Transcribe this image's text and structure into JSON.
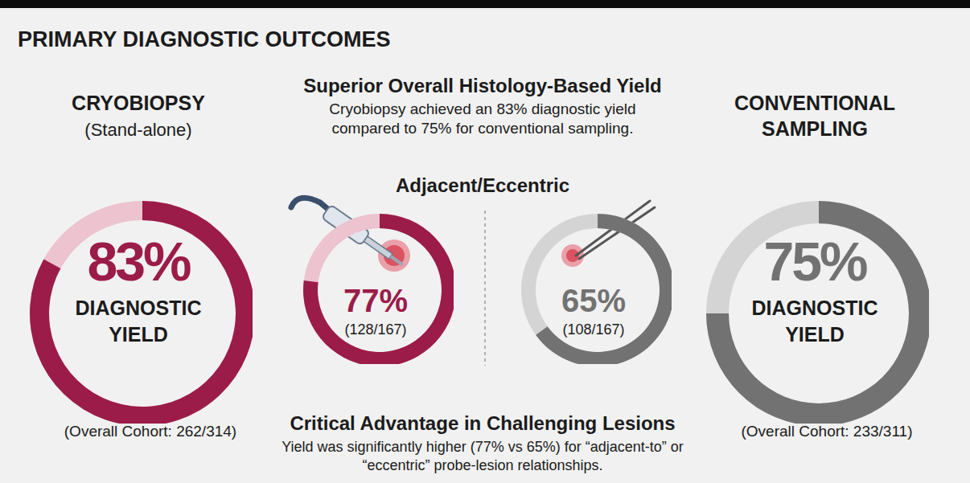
{
  "title": "PRIMARY DIAGNOSTIC OUTCOMES",
  "summary": {
    "title": "Superior Overall Histology-Based Yield",
    "text": "Cryobiopsy achieved an 83% diagnostic yield compared to 75% for conventional sampling."
  },
  "subgroup_title": "Adjacent/Eccentric",
  "conclusion": {
    "title": "Critical Advantage in Challenging Lesions",
    "text": "Yield was significantly higher (77% vs 65%) for “adjacent-to” or “eccentric” probe-lesion relationships."
  },
  "chart_data": [
    {
      "type": "donut",
      "title": "CRYOBIOPSY",
      "subtitle": "(Stand-alone)",
      "values": [
        83
      ],
      "value_labels": [
        "83%"
      ],
      "label": "DIAGNOSTIC YIELD",
      "note": "(Overall Cohort: 262/314)",
      "colors": [
        "#9b1c48",
        "#ecc3cf"
      ]
    },
    {
      "type": "donut",
      "values": [
        77
      ],
      "value_labels": [
        "77%"
      ],
      "note": "(128/167)",
      "colors": [
        "#9b1c48",
        "#ecc3cf"
      ]
    },
    {
      "type": "donut",
      "values": [
        65
      ],
      "value_labels": [
        "65%"
      ],
      "note": "(108/167)",
      "colors": [
        "#727272",
        "#d4d4d4"
      ]
    },
    {
      "type": "donut",
      "title": "CONVENTIONAL SAMPLING",
      "values": [
        75
      ],
      "value_labels": [
        "75%"
      ],
      "label": "DIAGNOSTIC YIELD",
      "note": "(Overall Cohort: 233/311)",
      "colors": [
        "#727272",
        "#d4d4d4"
      ]
    }
  ]
}
